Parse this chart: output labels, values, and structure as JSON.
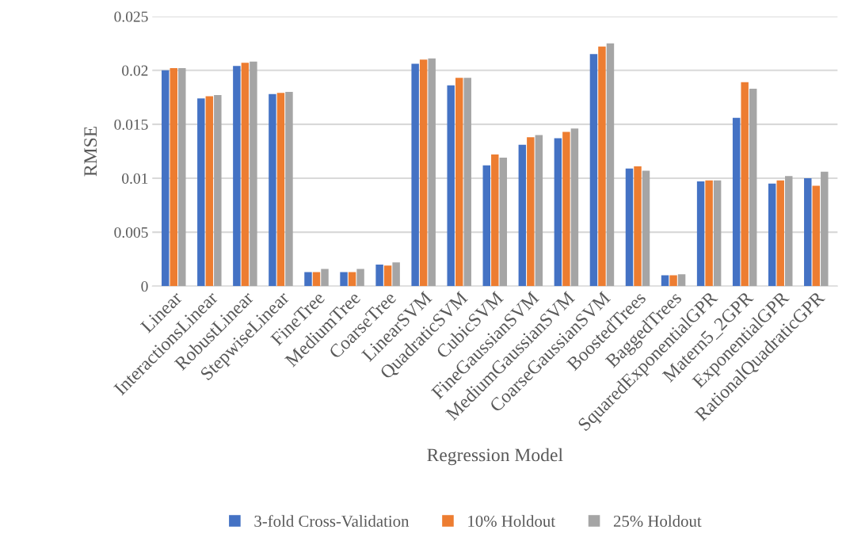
{
  "chart_data": {
    "type": "bar",
    "xlabel": "Regression Model",
    "ylabel": "RMSE",
    "categories": [
      "Linear",
      "InteractionsLinear",
      "RobustLinear",
      "StepwiseLinear",
      "FineTree",
      "MediumTree",
      "CoarseTree",
      "LinearSVM",
      "QuadraticSVM",
      "CubicSVM",
      "FineGaussianSVM",
      "MediumGaussianSVM",
      "CoarseGaussianSVM",
      "BoostedTrees",
      "BaggedTrees",
      "SquaredExponentialGPR",
      "Matern5_2GPR",
      "ExponentialGPR",
      "RationalQuadraticGPR"
    ],
    "series": [
      {
        "name": "3-fold Cross-Validation",
        "color": "#4472c4",
        "values": [
          0.02,
          0.0174,
          0.0204,
          0.0178,
          0.0013,
          0.0013,
          0.002,
          0.0206,
          0.0186,
          0.0112,
          0.0131,
          0.0137,
          0.0215,
          0.0109,
          0.001,
          0.0097,
          0.0156,
          0.0095,
          0.01
        ]
      },
      {
        "name": "10% Holdout",
        "color": "#ed7d31",
        "values": [
          0.0202,
          0.0176,
          0.0207,
          0.0179,
          0.0013,
          0.0013,
          0.0019,
          0.021,
          0.0193,
          0.0122,
          0.0138,
          0.0143,
          0.0222,
          0.0111,
          0.001,
          0.0098,
          0.0189,
          0.0098,
          0.0093
        ]
      },
      {
        "name": "25% Holdout",
        "color": "#a5a5a5",
        "values": [
          0.0202,
          0.0177,
          0.0208,
          0.018,
          0.0016,
          0.0016,
          0.0022,
          0.0211,
          0.0193,
          0.0119,
          0.014,
          0.0146,
          0.0225,
          0.0107,
          0.0011,
          0.0098,
          0.0183,
          0.0102,
          0.0106
        ]
      }
    ],
    "ylim": [
      0,
      0.025
    ],
    "yticks": [
      0,
      0.005,
      0.01,
      0.015,
      0.02,
      0.025
    ],
    "grid": "y",
    "legend": "bottom"
  }
}
